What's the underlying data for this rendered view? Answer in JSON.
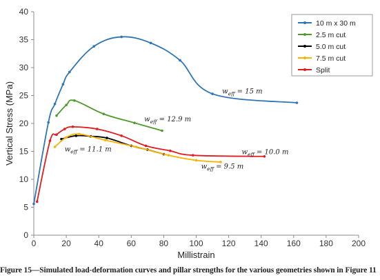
{
  "caption": "Figure 15—Simulated load-deformation curves and pillar strengths for the various geometries shown in Figure 11",
  "chart_data": {
    "type": "line",
    "xlabel": "Millistrain",
    "ylabel": "Vertical Stress (MPa)",
    "xlim": [
      0,
      200
    ],
    "ylim": [
      0,
      40
    ],
    "xticks": [
      "0",
      "20",
      "40",
      "60",
      "80",
      "100",
      "120",
      "140",
      "160",
      "180",
      "200"
    ],
    "yticks": [
      "0",
      "5",
      "10",
      "15",
      "20",
      "25",
      "30",
      "35",
      "40"
    ],
    "grid": false,
    "legend_position": "top-right",
    "series": [
      {
        "name": "10 m x 30 m",
        "color": "#2e75b6",
        "points": [
          [
            0,
            5.6
          ],
          [
            9,
            20.2
          ],
          [
            13,
            23.5
          ],
          [
            18,
            27.0
          ],
          [
            22,
            29.2
          ],
          [
            37,
            33.8
          ],
          [
            54,
            35.5
          ],
          [
            72,
            34.4
          ],
          [
            90,
            31.3
          ],
          [
            110,
            25.3
          ],
          [
            162,
            23.7
          ]
        ]
      },
      {
        "name": "2.5 m cut",
        "color": "#4e9a2a",
        "points": [
          [
            14,
            21.4
          ],
          [
            20,
            23.3
          ],
          [
            25,
            24.1
          ],
          [
            43,
            21.7
          ],
          [
            62,
            20.1
          ],
          [
            79,
            18.7
          ]
        ]
      },
      {
        "name": "5.0 m cut",
        "color": "#000000",
        "points": [
          [
            17,
            17.2
          ],
          [
            26,
            17.8
          ],
          [
            35,
            17.7
          ],
          [
            45,
            17.4
          ],
          [
            60,
            16.0
          ],
          [
            70,
            15.3
          ],
          [
            80,
            14.5
          ]
        ]
      },
      {
        "name": "7.5 m cut",
        "color": "#f6b400",
        "points": [
          [
            13,
            15.8
          ],
          [
            20,
            17.5
          ],
          [
            28,
            18.1
          ],
          [
            44,
            17.0
          ],
          [
            63,
            15.8
          ],
          [
            83,
            14.3
          ],
          [
            100,
            13.4
          ],
          [
            115,
            13.1
          ]
        ]
      },
      {
        "name": "Split",
        "color": "#e41a1c",
        "points": [
          [
            2,
            6.0
          ],
          [
            10,
            16.9
          ],
          [
            14,
            18.0
          ],
          [
            19,
            19.0
          ],
          [
            24,
            19.4
          ],
          [
            39,
            19.0
          ],
          [
            54,
            17.8
          ],
          [
            69,
            16.0
          ],
          [
            84,
            15.1
          ],
          [
            98,
            14.3
          ],
          [
            142,
            14.1
          ]
        ]
      }
    ],
    "annotations": [
      {
        "text": "w_eff = 15 m",
        "x": 116,
        "y": 25.4
      },
      {
        "text": "w_eff = 12.9 m",
        "x": 68,
        "y": 20.4
      },
      {
        "text": "w_eff = 11.1 m",
        "x": 19,
        "y": 15.0
      },
      {
        "text": "w_eff = 10.0 m",
        "x": 128,
        "y": 14.5
      },
      {
        "text": "w_eff = 9.5 m",
        "x": 103,
        "y": 11.9
      }
    ]
  }
}
